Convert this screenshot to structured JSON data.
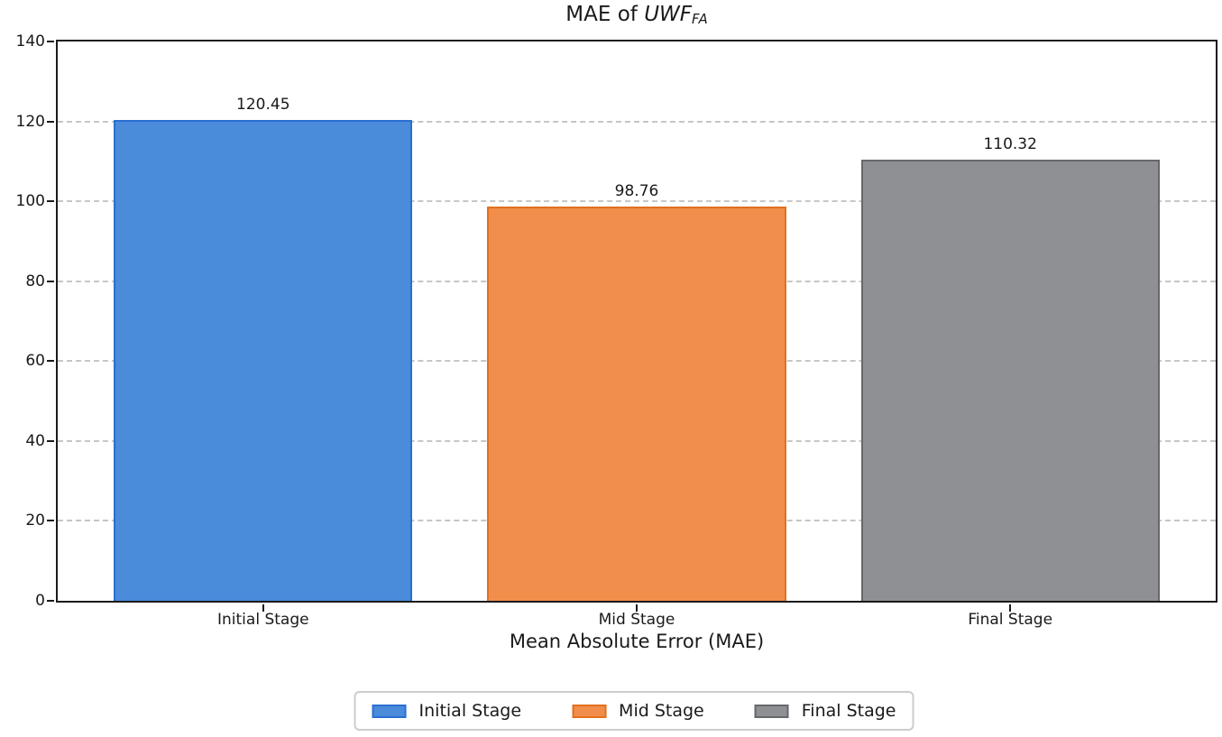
{
  "figure": {
    "title": {
      "prefix": "MAE of ",
      "math_italic": "UWF",
      "subscript": "FA"
    },
    "xlabel": "Mean Absolute Error (MAE)"
  },
  "chart_data": {
    "type": "bar",
    "title": "MAE of UWF_FA",
    "categories": [
      "Initial Stage",
      "Mid Stage",
      "Final Stage"
    ],
    "values": [
      120.45,
      98.76,
      110.32
    ],
    "value_labels": [
      "120.45",
      "98.76",
      "110.32"
    ],
    "series": [
      {
        "name": "Initial Stage",
        "value": 120.45,
        "fill": "#4a8bda",
        "edge": "#2a6fd1"
      },
      {
        "name": "Mid Stage",
        "value": 98.76,
        "fill": "#f28e4b",
        "edge": "#e2701d"
      },
      {
        "name": "Final Stage",
        "value": 110.32,
        "fill": "#8e9093",
        "edge": "#66686c"
      }
    ],
    "xlabel": "Mean Absolute Error (MAE)",
    "ylabel": "",
    "ylim": [
      0,
      140
    ],
    "yticks": [
      0,
      20,
      40,
      60,
      80,
      100,
      120,
      140
    ],
    "grid": {
      "axis": "y",
      "style": "dashed",
      "color": "#c6c6c6"
    },
    "legend": {
      "position": "bottom-center",
      "entries": [
        "Initial Stage",
        "Mid Stage",
        "Final Stage"
      ]
    }
  },
  "colors": {
    "background": "#ffffff",
    "spine": "#1a1a1a",
    "text": "#1a1a1a",
    "gridline": "#c6c6c6",
    "legend_border": "#cccccc"
  }
}
